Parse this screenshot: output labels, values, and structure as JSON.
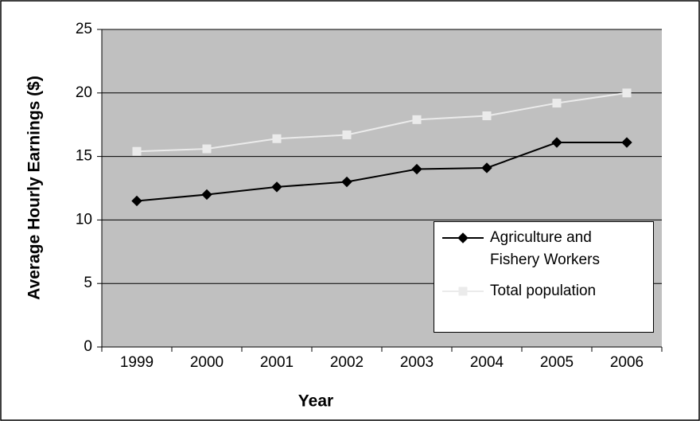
{
  "chart_data": {
    "type": "line",
    "x_label": "Year",
    "y_label": "Average Hourly Earnings ($)",
    "categories": [
      "1999",
      "2000",
      "2001",
      "2002",
      "2003",
      "2004",
      "2005",
      "2006"
    ],
    "series": [
      {
        "name": "Agriculture and Fishery Workers",
        "color": "#000000",
        "marker": "diamond",
        "values": [
          11.5,
          12.0,
          12.6,
          13.0,
          14.0,
          14.1,
          16.1,
          16.1
        ]
      },
      {
        "name": "Total population",
        "color": "#ebebeb",
        "marker": "square",
        "values": [
          15.4,
          15.6,
          16.4,
          16.7,
          17.9,
          18.2,
          19.2,
          20.0
        ]
      }
    ],
    "ylim": [
      0,
      25
    ],
    "yticks": [
      0,
      5,
      10,
      15,
      20,
      25
    ],
    "grid": true,
    "plot_background": "#c0c0c0",
    "legend_position": "lower right"
  }
}
